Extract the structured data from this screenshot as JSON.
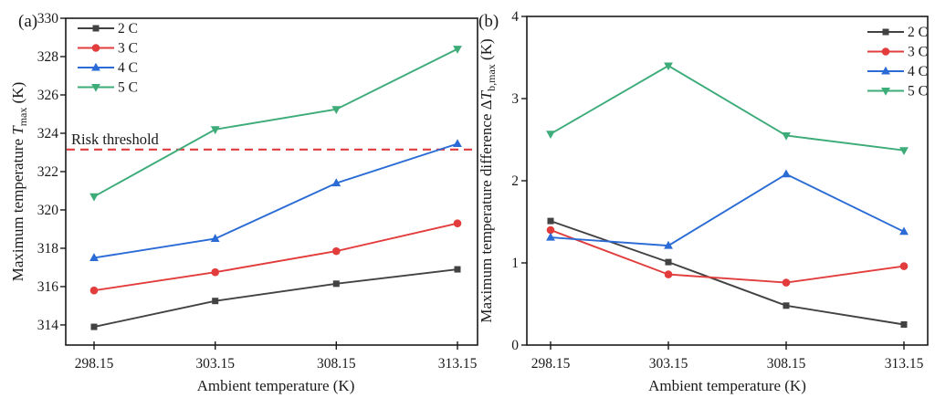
{
  "figure": {
    "background": "#ffffff",
    "axis_color": "#1a1a1a"
  },
  "chart_data": [
    {
      "type": "line",
      "panel_label": "(a)",
      "xlabel": "Ambient temperature (K)",
      "ylabel_plain": "Maximum temperature T_max (K)",
      "ylabel_rich": [
        {
          "t": "Maximum temperature "
        },
        {
          "t": "T",
          "style": "italic"
        },
        {
          "t": "max",
          "style": "sub"
        },
        {
          "t": " (K)"
        }
      ],
      "x": [
        298.15,
        303.15,
        308.15,
        313.15
      ],
      "x_tick_labels": [
        "298.15",
        "303.15",
        "308.15",
        "313.15"
      ],
      "ylim": [
        312.95,
        330
      ],
      "yticks": [
        314,
        316,
        318,
        320,
        322,
        324,
        326,
        328,
        330
      ],
      "grid": false,
      "legend_position": "top-left",
      "legend_labels": [
        "2 C",
        "3 C",
        "4 C",
        "5 C"
      ],
      "series": [
        {
          "name": "2 C",
          "marker": "square",
          "color": "#424242",
          "values": [
            313.9,
            315.25,
            316.15,
            316.9
          ]
        },
        {
          "name": "3 C",
          "marker": "circle",
          "color": "#e23c3c",
          "values": [
            315.8,
            316.75,
            317.85,
            319.3
          ]
        },
        {
          "name": "4 C",
          "marker": "triangle-up",
          "color": "#2a6bd5",
          "values": [
            317.5,
            318.5,
            321.4,
            323.45
          ]
        },
        {
          "name": "5 C",
          "marker": "triangle-down",
          "color": "#3dac79",
          "values": [
            320.7,
            324.2,
            325.25,
            328.4
          ]
        }
      ],
      "annotations": [
        {
          "type": "hline",
          "label": "Risk threshold",
          "y": 323.15,
          "color": "#e03c3c",
          "line_style": "dashed"
        }
      ]
    },
    {
      "type": "line",
      "panel_label": "(b)",
      "xlabel": "Ambient temperature (K)",
      "ylabel_plain": "Maximum temperature difference ΔT_b,max (K)",
      "ylabel_rich": [
        {
          "t": "Maximum temperature difference Δ"
        },
        {
          "t": "T",
          "style": "italic"
        },
        {
          "t": "b,max",
          "style": "sub"
        },
        {
          "t": " (K)"
        }
      ],
      "x": [
        298.15,
        303.15,
        308.15,
        313.15
      ],
      "x_tick_labels": [
        "298.15",
        "303.15",
        "308.15",
        "313.15"
      ],
      "ylim": [
        0,
        4
      ],
      "yticks": [
        0,
        1,
        2,
        3,
        4
      ],
      "grid": false,
      "legend_position": "top-right",
      "legend_labels": [
        "2 C",
        "3 C",
        "4 C",
        "5 C"
      ],
      "series": [
        {
          "name": "2 C",
          "marker": "square",
          "color": "#424242",
          "values": [
            1.51,
            1.01,
            0.48,
            0.25
          ]
        },
        {
          "name": "3 C",
          "marker": "circle",
          "color": "#e23c3c",
          "values": [
            1.4,
            0.86,
            0.76,
            0.96
          ]
        },
        {
          "name": "4 C",
          "marker": "triangle-up",
          "color": "#2a6bd5",
          "values": [
            1.31,
            1.21,
            2.08,
            1.38
          ]
        },
        {
          "name": "5 C",
          "marker": "triangle-down",
          "color": "#3dac79",
          "values": [
            2.57,
            3.4,
            2.55,
            2.37
          ]
        }
      ],
      "annotations": []
    }
  ]
}
